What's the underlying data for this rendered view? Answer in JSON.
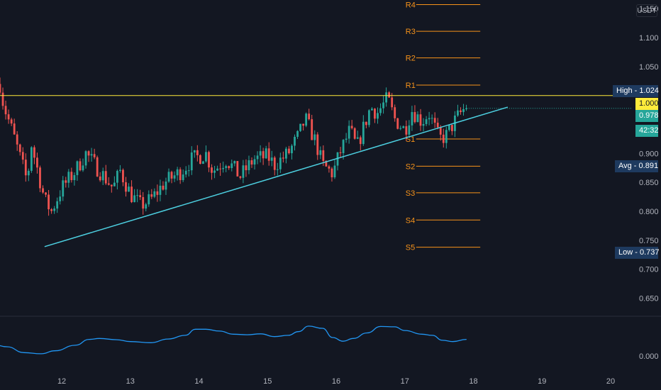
{
  "currency": "USDT",
  "colors": {
    "background": "#131722",
    "up": "#26a69a",
    "down": "#ef5350",
    "trendline": "#4dd0e1",
    "resistance": "#ffeb3b",
    "pivot": "#f7931a",
    "oscillator": "#2196f3",
    "axis_text": "#b2b5be",
    "separator": "#2a2e39"
  },
  "price_axis": {
    "labels": [
      "1.150",
      "1.100",
      "1.050",
      "0.900",
      "0.850",
      "0.800",
      "0.750",
      "0.700",
      "0.650"
    ],
    "values": [
      1.15,
      1.1,
      1.05,
      0.9,
      0.85,
      0.8,
      0.75,
      0.7,
      0.65
    ]
  },
  "time_axis": {
    "labels": [
      "12",
      "13",
      "14",
      "15",
      "16",
      "17",
      "18",
      "19",
      "20"
    ]
  },
  "oscillator_axis": {
    "label": "0.000",
    "value": 0
  },
  "tags": {
    "high": "High - 1.024",
    "level": "1.000",
    "last": "0.978",
    "countdown": "42:32",
    "avg": "Avg - 0.891",
    "low": "Low - 0.737"
  },
  "pivots": [
    {
      "label": "R4",
      "value": 1.157
    },
    {
      "label": "R3",
      "value": 1.111
    },
    {
      "label": "R2",
      "value": 1.065
    },
    {
      "label": "R1",
      "value": 1.018
    },
    {
      "label": "S1",
      "value": 0.925
    },
    {
      "label": "S2",
      "value": 0.878
    },
    {
      "label": "S3",
      "value": 0.832
    },
    {
      "label": "S4",
      "value": 0.785
    },
    {
      "label": "S5",
      "value": 0.738
    }
  ],
  "chart_data": {
    "type": "candlestick",
    "x_domain": [
      11.1,
      20.3
    ],
    "ylim": [
      0.62,
      1.165
    ],
    "resistance_level": 1.0,
    "last_price": 0.978,
    "trendline": [
      [
        11.75,
        0.739
      ],
      [
        18.5,
        0.98
      ]
    ],
    "pivot_range": [
      17.0,
      18.1
    ],
    "candle_start_day": 11.1,
    "candle_interval_days": 0.0417,
    "close_anchors": [
      [
        11.1,
        1.02
      ],
      [
        11.15,
        0.985
      ],
      [
        11.3,
        0.93
      ],
      [
        11.5,
        0.85
      ],
      [
        11.55,
        0.92
      ],
      [
        11.75,
        0.82
      ],
      [
        11.85,
        0.8
      ],
      [
        12.0,
        0.84
      ],
      [
        12.2,
        0.87
      ],
      [
        12.35,
        0.9
      ],
      [
        12.55,
        0.87
      ],
      [
        12.75,
        0.84
      ],
      [
        12.85,
        0.87
      ],
      [
        13.0,
        0.83
      ],
      [
        13.15,
        0.81
      ],
      [
        13.3,
        0.82
      ],
      [
        13.5,
        0.85
      ],
      [
        13.75,
        0.87
      ],
      [
        13.9,
        0.89
      ],
      [
        14.1,
        0.9
      ],
      [
        14.2,
        0.87
      ],
      [
        14.4,
        0.89
      ],
      [
        14.6,
        0.86
      ],
      [
        14.8,
        0.89
      ],
      [
        15.0,
        0.895
      ],
      [
        15.1,
        0.88
      ],
      [
        15.3,
        0.9
      ],
      [
        15.45,
        0.93
      ],
      [
        15.55,
        0.96
      ],
      [
        15.7,
        0.92
      ],
      [
        15.8,
        0.88
      ],
      [
        15.95,
        0.865
      ],
      [
        16.05,
        0.9
      ],
      [
        16.2,
        0.94
      ],
      [
        16.3,
        0.91
      ],
      [
        16.5,
        0.98
      ],
      [
        16.6,
        0.97
      ],
      [
        16.75,
        0.995
      ],
      [
        16.85,
        0.96
      ],
      [
        17.0,
        0.94
      ],
      [
        17.1,
        0.975
      ],
      [
        17.25,
        0.955
      ],
      [
        17.35,
        0.97
      ],
      [
        17.5,
        0.925
      ],
      [
        17.6,
        0.93
      ],
      [
        17.75,
        0.96
      ],
      [
        17.85,
        0.975
      ],
      [
        17.9,
        0.978
      ]
    ],
    "oscillator": [
      [
        11.0,
        0.62
      ],
      [
        11.2,
        0.5
      ],
      [
        11.45,
        0.18
      ],
      [
        11.7,
        0.12
      ],
      [
        11.9,
        0.28
      ],
      [
        12.2,
        0.58
      ],
      [
        12.4,
        0.9
      ],
      [
        12.55,
        0.95
      ],
      [
        12.8,
        0.88
      ],
      [
        13.0,
        0.78
      ],
      [
        13.3,
        0.72
      ],
      [
        13.55,
        0.92
      ],
      [
        13.8,
        1.12
      ],
      [
        13.95,
        1.45
      ],
      [
        14.1,
        1.45
      ],
      [
        14.3,
        1.35
      ],
      [
        14.5,
        1.18
      ],
      [
        14.7,
        1.15
      ],
      [
        14.9,
        1.2
      ],
      [
        15.1,
        1.05
      ],
      [
        15.3,
        1.12
      ],
      [
        15.45,
        1.32
      ],
      [
        15.6,
        1.62
      ],
      [
        15.8,
        1.5
      ],
      [
        15.95,
        1.0
      ],
      [
        16.1,
        0.8
      ],
      [
        16.25,
        0.95
      ],
      [
        16.45,
        1.25
      ],
      [
        16.65,
        1.6
      ],
      [
        16.85,
        1.58
      ],
      [
        17.0,
        1.38
      ],
      [
        17.25,
        1.18
      ],
      [
        17.4,
        1.12
      ],
      [
        17.55,
        0.85
      ],
      [
        17.7,
        0.78
      ],
      [
        17.9,
        0.9
      ]
    ],
    "osc_range": [
      -1.0,
      2.0
    ]
  }
}
